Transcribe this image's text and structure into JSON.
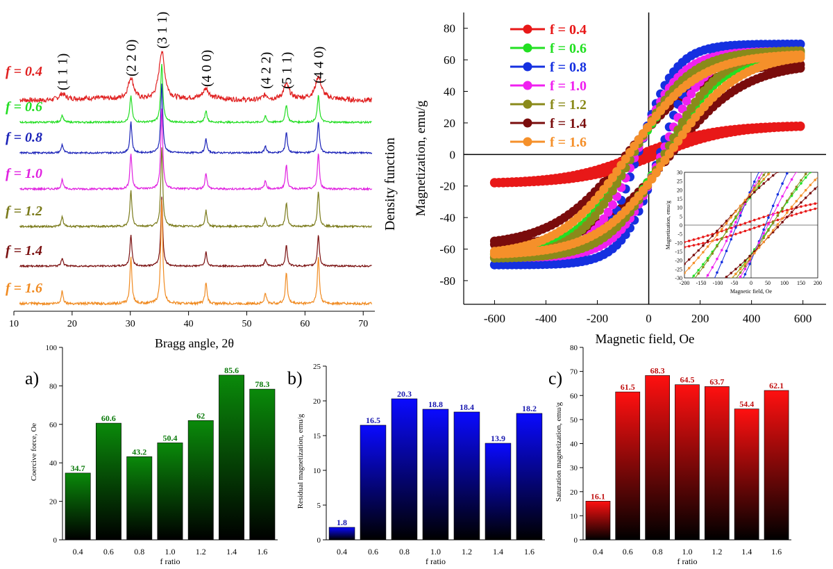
{
  "chart_data": [
    {
      "id": "xrd",
      "type": "line",
      "title": "",
      "xlabel": "Bragg angle, 2θ",
      "ylabel": "Density function",
      "xlim": [
        10,
        72
      ],
      "xticks": [
        10,
        20,
        30,
        40,
        50,
        60,
        70
      ],
      "peaks": [
        {
          "label": "(1 1 1)",
          "x": 18.3,
          "h": 0.12
        },
        {
          "label": "(2 2 0)",
          "x": 30.1,
          "h": 0.45
        },
        {
          "label": "(3 1 1)",
          "x": 35.4,
          "h": 1.0
        },
        {
          "label": "(4 0 0)",
          "x": 43.0,
          "h": 0.2
        },
        {
          "label": "(4 2 2)",
          "x": 53.2,
          "h": 0.1
        },
        {
          "label": "(5 1 1)",
          "x": 56.8,
          "h": 0.3
        },
        {
          "label": "(4 4 0)",
          "x": 62.3,
          "h": 0.45
        }
      ],
      "series": [
        {
          "name": "f = 0.4",
          "color": "#e02020",
          "amp": 1.0,
          "width": 0.6,
          "noise": 0.05
        },
        {
          "name": "f = 0.6",
          "color": "#22dd22",
          "amp": 1.0,
          "width": 0.22,
          "noise": 0.015
        },
        {
          "name": "f = 0.8",
          "color": "#1a22b8",
          "amp": 1.0,
          "width": 0.2,
          "noise": 0.012
        },
        {
          "name": "f = 1.0",
          "color": "#e020e0",
          "amp": 1.0,
          "width": 0.2,
          "noise": 0.012
        },
        {
          "name": "f = 1.2",
          "color": "#7a7a1a",
          "amp": 1.0,
          "width": 0.2,
          "noise": 0.012
        },
        {
          "name": "f = 1.4",
          "color": "#7a1010",
          "amp": 1.0,
          "width": 0.2,
          "noise": 0.012
        },
        {
          "name": "f = 1.6",
          "color": "#f08a20",
          "amp": 1.0,
          "width": 0.2,
          "noise": 0.012
        }
      ]
    },
    {
      "id": "hysteresis",
      "type": "scatter",
      "title": "",
      "xlabel": "Magnetic field, Oe",
      "ylabel": "Magnetization, emu/g",
      "xlim": [
        -720,
        690
      ],
      "ylim": [
        -95,
        90
      ],
      "xticks": [
        -600,
        -400,
        -200,
        0,
        200,
        400,
        600
      ],
      "yticks": [
        -80,
        -60,
        -40,
        -20,
        0,
        20,
        40,
        60,
        80
      ],
      "series": [
        {
          "name": "f = 0.4",
          "color": "#e81818",
          "Ms": 18.5,
          "Mr": 1.8,
          "Hc": 34.7
        },
        {
          "name": "f = 0.6",
          "color": "#22e022",
          "Ms": 64,
          "Mr": 16.5,
          "Hc": 60.6
        },
        {
          "name": "f = 0.8",
          "color": "#1530e0",
          "Ms": 70,
          "Mr": 20.3,
          "Hc": 43.2
        },
        {
          "name": "f = 1.0",
          "color": "#f020f0",
          "Ms": 65.5,
          "Mr": 18.8,
          "Hc": 50.4
        },
        {
          "name": "f = 1.2",
          "color": "#8a8a1a",
          "Ms": 66,
          "Mr": 18.4,
          "Hc": 62
        },
        {
          "name": "f = 1.4",
          "color": "#7a0c0c",
          "Ms": 58,
          "Mr": 13.9,
          "Hc": 85.6
        },
        {
          "name": "f = 1.6",
          "color": "#f5902a",
          "Ms": 64,
          "Mr": 18.2,
          "Hc": 78.3
        }
      ],
      "inset": {
        "xlabel": "Magnetic field, Oe",
        "ylabel": "Magnetization, emu/g",
        "xlim": [
          -200,
          200
        ],
        "ylim": [
          -30,
          30
        ],
        "xticks": [
          -200,
          -150,
          -100,
          -50,
          0,
          50,
          100,
          150,
          200
        ],
        "yticks": [
          -30,
          -25,
          -20,
          -15,
          -10,
          -5,
          0,
          5,
          10,
          15,
          20,
          25,
          30
        ]
      }
    },
    {
      "id": "coercive",
      "panel_label": "a)",
      "type": "bar",
      "title": "",
      "xlabel": "f ratio",
      "ylabel": "Coercive force, Oe",
      "ylim": [
        0,
        100
      ],
      "yticks": [
        0,
        20,
        40,
        60,
        80,
        100
      ],
      "categories": [
        "0.4",
        "0.6",
        "0.8",
        "1.0",
        "1.2",
        "1.4",
        "1.6"
      ],
      "values": [
        34.7,
        60.6,
        43.2,
        50.4,
        62,
        85.6,
        78.3
      ],
      "value_labels": [
        "34.7",
        "60.6",
        "43.2",
        "50.4",
        "62",
        "85.6",
        "78.3"
      ],
      "color_top": "#0a8a0a",
      "color_bottom": "#000000",
      "label_color": "#0a7a0a"
    },
    {
      "id": "residual",
      "panel_label": "b)",
      "type": "bar",
      "title": "",
      "xlabel": "f ratio",
      "ylabel": "Residual magnetization, emu/g",
      "ylim": [
        0,
        25
      ],
      "yticks": [
        0,
        5,
        10,
        15,
        20,
        25
      ],
      "categories": [
        "0.4",
        "0.6",
        "0.8",
        "1.0",
        "1.2",
        "1.4",
        "1.6"
      ],
      "values": [
        1.8,
        16.5,
        20.3,
        18.8,
        18.4,
        13.9,
        18.2
      ],
      "value_labels": [
        "1.8",
        "16.5",
        "20.3",
        "18.8",
        "18.4",
        "13.9",
        "18.2"
      ],
      "color_top": "#0a0aff",
      "color_bottom": "#000000",
      "label_color": "#1a1ab0"
    },
    {
      "id": "saturation",
      "panel_label": "c)",
      "type": "bar",
      "title": "",
      "xlabel": "f ratio",
      "ylabel": "Saturation magnetization, emu/g",
      "ylim": [
        0,
        80
      ],
      "yticks": [
        0,
        10,
        20,
        30,
        40,
        50,
        60,
        70,
        80
      ],
      "categories": [
        "0.4",
        "0.6",
        "0.8",
        "1.0",
        "1.2",
        "1.4",
        "1.6"
      ],
      "values": [
        16.1,
        61.5,
        68.3,
        64.5,
        63.7,
        54.4,
        62.1
      ],
      "value_labels": [
        "16.1",
        "61.5",
        "68.3",
        "64.5",
        "63.7",
        "54.4",
        "62.1"
      ],
      "color_top": "#ff1010",
      "color_bottom": "#000000",
      "label_color": "#c01010"
    }
  ]
}
